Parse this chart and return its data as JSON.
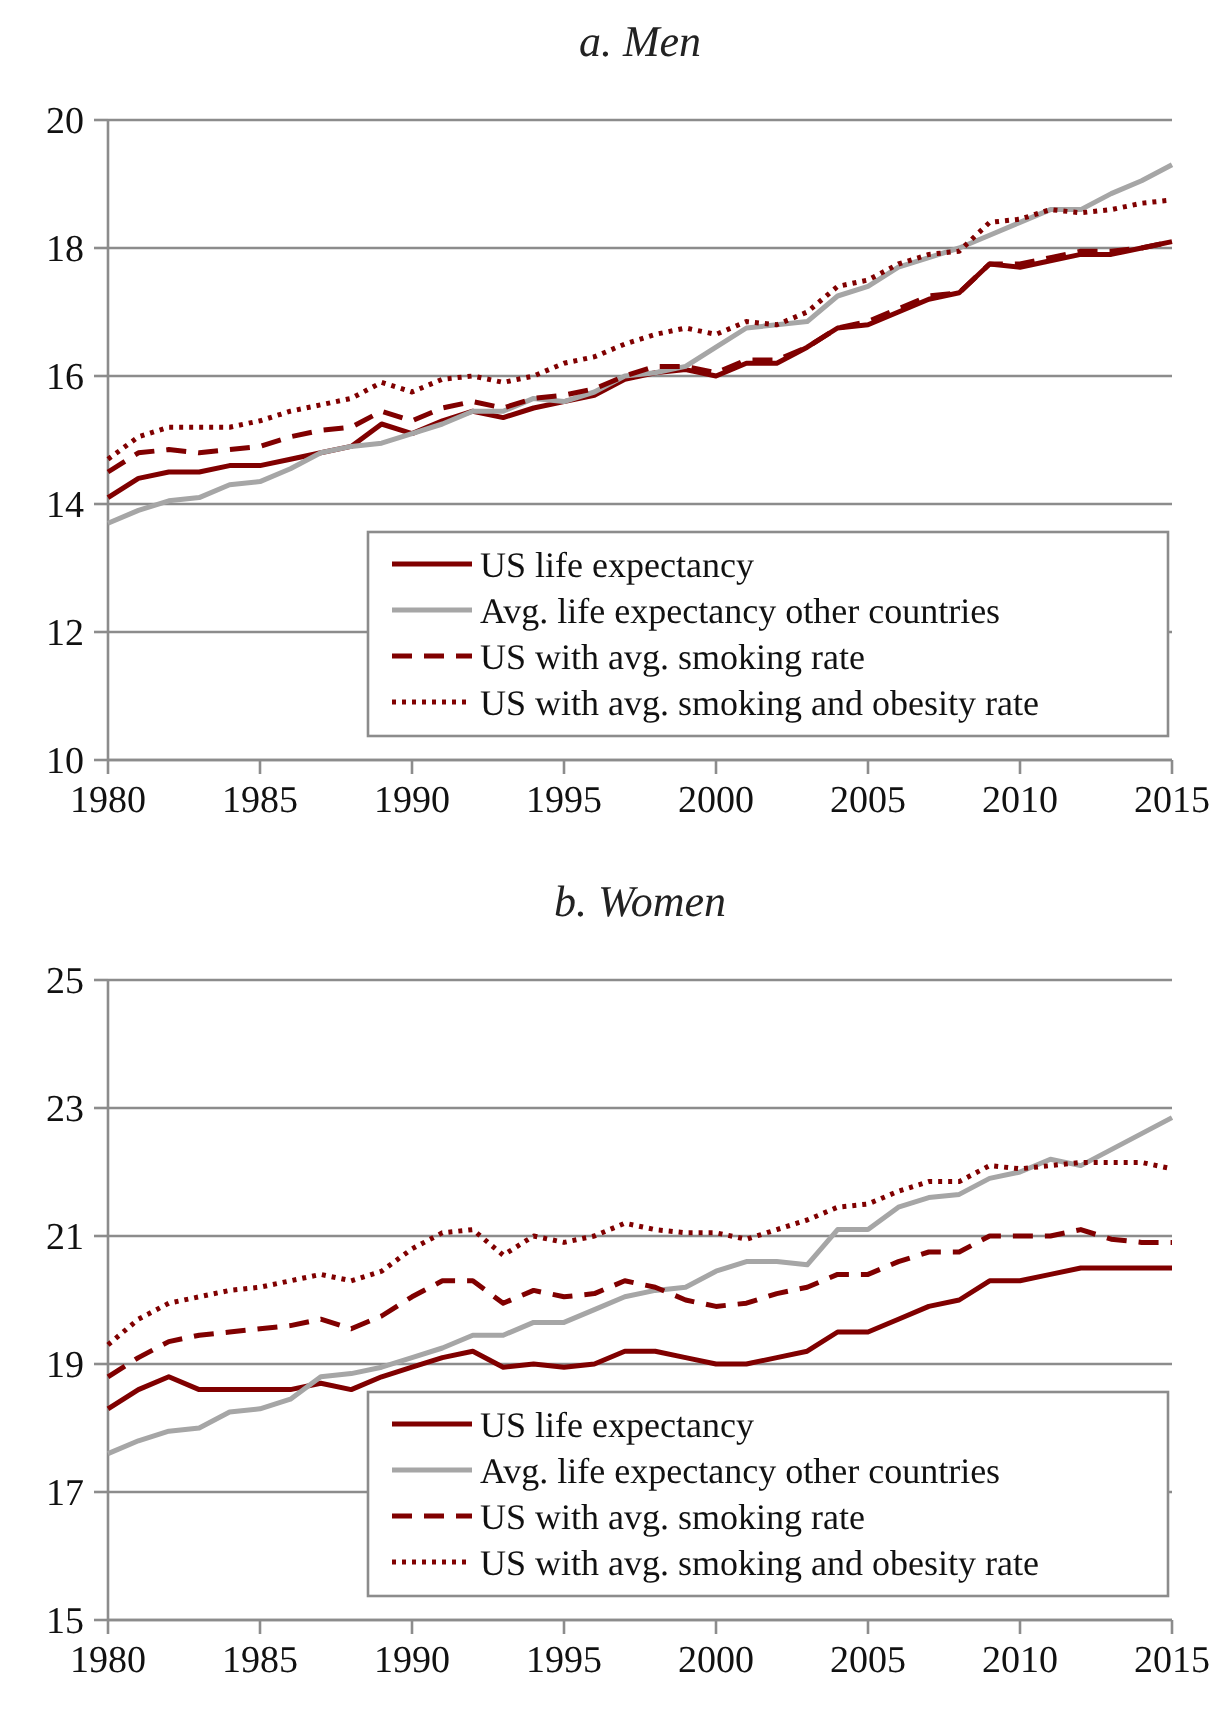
{
  "chart_data": [
    {
      "type": "line",
      "title": "a. Men",
      "x": [
        1980,
        1981,
        1982,
        1983,
        1984,
        1985,
        1986,
        1987,
        1988,
        1989,
        1990,
        1991,
        1992,
        1993,
        1994,
        1995,
        1996,
        1997,
        1998,
        1999,
        2000,
        2001,
        2002,
        2003,
        2004,
        2005,
        2006,
        2007,
        2008,
        2009,
        2010,
        2011,
        2012,
        2013,
        2014,
        2015
      ],
      "xlim": [
        1980,
        2015
      ],
      "xticks": [
        1980,
        1985,
        1990,
        1995,
        2000,
        2005,
        2010,
        2015
      ],
      "ylim": [
        10,
        20
      ],
      "yticks": [
        10,
        12,
        14,
        16,
        18,
        20
      ],
      "grid": "y",
      "legend": "bottom right",
      "series": [
        {
          "name": "US life expectancy",
          "color": "#800000",
          "line_style": "solid",
          "values": [
            14.1,
            14.4,
            14.5,
            14.5,
            14.6,
            14.6,
            14.7,
            14.8,
            14.9,
            15.25,
            15.1,
            15.3,
            15.45,
            15.35,
            15.5,
            15.6,
            15.7,
            15.95,
            16.05,
            16.1,
            16.0,
            16.2,
            16.2,
            16.45,
            16.75,
            16.8,
            17.0,
            17.2,
            17.3,
            17.75,
            17.7,
            17.8,
            17.9,
            17.9,
            18.0,
            18.1
          ]
        },
        {
          "name": "Avg. life expectancy other countries",
          "color": "#a6a6a6",
          "line_style": "solid",
          "values": [
            13.7,
            13.9,
            14.05,
            14.1,
            14.3,
            14.35,
            14.55,
            14.8,
            14.9,
            14.95,
            15.1,
            15.25,
            15.45,
            15.45,
            15.65,
            15.6,
            15.75,
            16.0,
            16.05,
            16.15,
            16.45,
            16.75,
            16.8,
            16.85,
            17.25,
            17.4,
            17.7,
            17.85,
            18.0,
            18.2,
            18.4,
            18.6,
            18.6,
            18.85,
            19.05,
            19.3
          ]
        },
        {
          "name": "US with avg. smoking rate",
          "color": "#800000",
          "line_style": "dashed",
          "values": [
            14.5,
            14.8,
            14.85,
            14.8,
            14.85,
            14.9,
            15.05,
            15.15,
            15.2,
            15.45,
            15.3,
            15.5,
            15.6,
            15.5,
            15.65,
            15.7,
            15.8,
            16.0,
            16.15,
            16.15,
            16.05,
            16.25,
            16.25,
            16.45,
            16.75,
            16.85,
            17.05,
            17.25,
            17.3,
            17.75,
            17.75,
            17.85,
            17.95,
            17.95,
            18.0,
            18.1
          ]
        },
        {
          "name": "US with avg. smoking and obesity rate",
          "color": "#800000",
          "line_style": "dotted",
          "values": [
            14.7,
            15.05,
            15.2,
            15.2,
            15.2,
            15.3,
            15.45,
            15.55,
            15.65,
            15.9,
            15.75,
            15.95,
            16.0,
            15.9,
            16.0,
            16.2,
            16.3,
            16.5,
            16.65,
            16.75,
            16.65,
            16.85,
            16.8,
            17.0,
            17.4,
            17.5,
            17.75,
            17.9,
            17.95,
            18.4,
            18.45,
            18.6,
            18.55,
            18.6,
            18.7,
            18.75
          ]
        }
      ]
    },
    {
      "type": "line",
      "title": "b. Women",
      "x": [
        1980,
        1981,
        1982,
        1983,
        1984,
        1985,
        1986,
        1987,
        1988,
        1989,
        1990,
        1991,
        1992,
        1993,
        1994,
        1995,
        1996,
        1997,
        1998,
        1999,
        2000,
        2001,
        2002,
        2003,
        2004,
        2005,
        2006,
        2007,
        2008,
        2009,
        2010,
        2011,
        2012,
        2013,
        2014,
        2015
      ],
      "xlim": [
        1980,
        2015
      ],
      "xticks": [
        1980,
        1985,
        1990,
        1995,
        2000,
        2005,
        2010,
        2015
      ],
      "ylim": [
        15,
        25
      ],
      "yticks": [
        15,
        17,
        19,
        21,
        23,
        25
      ],
      "grid": "y",
      "legend": "bottom right",
      "series": [
        {
          "name": "US life expectancy",
          "color": "#800000",
          "line_style": "solid",
          "values": [
            18.3,
            18.6,
            18.8,
            18.6,
            18.6,
            18.6,
            18.6,
            18.7,
            18.6,
            18.8,
            18.95,
            19.1,
            19.2,
            18.95,
            19.0,
            18.95,
            19.0,
            19.2,
            19.2,
            19.1,
            19.0,
            19.0,
            19.1,
            19.2,
            19.5,
            19.5,
            19.7,
            19.9,
            20.0,
            20.3,
            20.3,
            20.4,
            20.5,
            20.5,
            20.5,
            20.5
          ]
        },
        {
          "name": "Avg. life expectancy other countries",
          "color": "#a6a6a6",
          "line_style": "solid",
          "values": [
            17.6,
            17.8,
            17.95,
            18.0,
            18.25,
            18.3,
            18.45,
            18.8,
            18.85,
            18.95,
            19.1,
            19.25,
            19.45,
            19.45,
            19.65,
            19.65,
            19.85,
            20.05,
            20.15,
            20.2,
            20.45,
            20.6,
            20.6,
            20.55,
            21.1,
            21.1,
            21.45,
            21.6,
            21.65,
            21.9,
            22.0,
            22.2,
            22.1,
            22.35,
            22.6,
            22.85
          ]
        },
        {
          "name": "US with avg. smoking rate",
          "color": "#800000",
          "line_style": "dashed",
          "values": [
            18.8,
            19.1,
            19.35,
            19.45,
            19.5,
            19.55,
            19.6,
            19.7,
            19.55,
            19.75,
            20.05,
            20.3,
            20.3,
            19.95,
            20.15,
            20.05,
            20.1,
            20.3,
            20.2,
            20.0,
            19.9,
            19.95,
            20.1,
            20.2,
            20.4,
            20.4,
            20.6,
            20.75,
            20.75,
            21.0,
            21.0,
            21.0,
            21.1,
            20.95,
            20.9,
            20.9
          ]
        },
        {
          "name": "US with avg. smoking and obesity rate",
          "color": "#800000",
          "line_style": "dotted",
          "values": [
            19.3,
            19.7,
            19.95,
            20.05,
            20.15,
            20.2,
            20.3,
            20.4,
            20.3,
            20.45,
            20.8,
            21.05,
            21.1,
            20.7,
            21.0,
            20.9,
            21.0,
            21.2,
            21.1,
            21.05,
            21.05,
            20.95,
            21.1,
            21.25,
            21.45,
            21.5,
            21.7,
            21.85,
            21.85,
            22.1,
            22.05,
            22.1,
            22.15,
            22.15,
            22.15,
            22.05
          ]
        }
      ]
    }
  ]
}
